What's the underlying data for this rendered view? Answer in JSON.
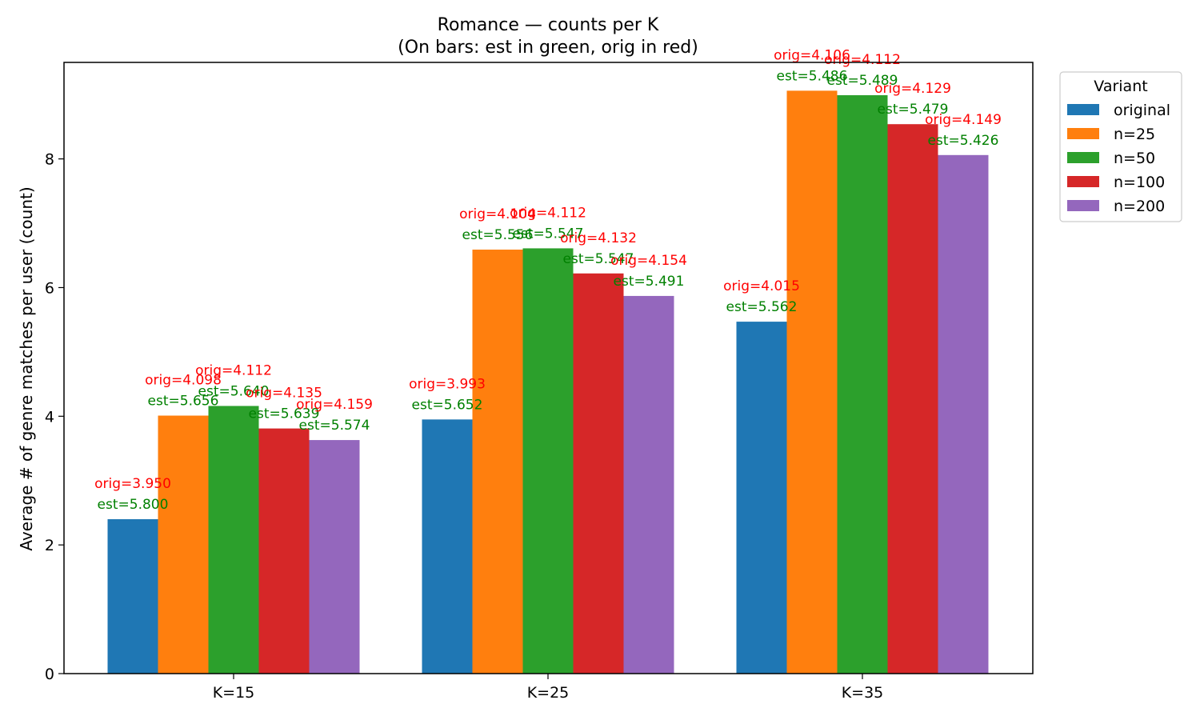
{
  "chart_data": {
    "type": "bar",
    "title": "Romance — counts per K",
    "subtitle": "(On bars: est in green, orig in red)",
    "xlabel": "",
    "ylabel": "Average # of genre matches per user (count)",
    "categories": [
      "K=15",
      "K=25",
      "K=35"
    ],
    "ylim": [
      0,
      9.5
    ],
    "yticks": [
      0,
      2,
      4,
      6,
      8
    ],
    "grid": false,
    "legend": {
      "title": "Variant",
      "placement": "outside-top-right"
    },
    "series": [
      {
        "name": "original",
        "color": "#1f77b4",
        "values": [
          2.4,
          3.95,
          5.47
        ],
        "est_labels": [
          "est=5.800",
          "est=5.652",
          "est=5.562"
        ],
        "orig_labels": [
          "orig=3.950",
          "orig=3.993",
          "orig=4.015"
        ]
      },
      {
        "name": "n=25",
        "color": "#ff7f0e",
        "values": [
          4.01,
          6.59,
          9.06
        ],
        "est_labels": [
          "est=5.656",
          "est=5.556",
          "est=5.486"
        ],
        "orig_labels": [
          "orig=4.098",
          "orig=4.104",
          "orig=4.106"
        ]
      },
      {
        "name": "n=50",
        "color": "#2ca02c",
        "values": [
          4.16,
          6.61,
          8.99
        ],
        "est_labels": [
          "est=5.640",
          "est=5.547",
          "est=5.489"
        ],
        "orig_labels": [
          "orig=4.112",
          "orig=4.112",
          "orig=4.112"
        ]
      },
      {
        "name": "n=100",
        "color": "#d62728",
        "values": [
          3.81,
          6.22,
          8.54
        ],
        "est_labels": [
          "est=5.639",
          "est=5.547",
          "est=5.479"
        ],
        "orig_labels": [
          "orig=4.135",
          "orig=4.132",
          "orig=4.129"
        ]
      },
      {
        "name": "n=200",
        "color": "#9467bd",
        "values": [
          3.63,
          5.87,
          8.06
        ],
        "est_labels": [
          "est=5.574",
          "est=5.491",
          "est=5.426"
        ],
        "orig_labels": [
          "orig=4.159",
          "orig=4.154",
          "orig=4.149"
        ]
      }
    ],
    "annotation_colors": {
      "est": "#008000",
      "orig": "#ff0000"
    }
  }
}
